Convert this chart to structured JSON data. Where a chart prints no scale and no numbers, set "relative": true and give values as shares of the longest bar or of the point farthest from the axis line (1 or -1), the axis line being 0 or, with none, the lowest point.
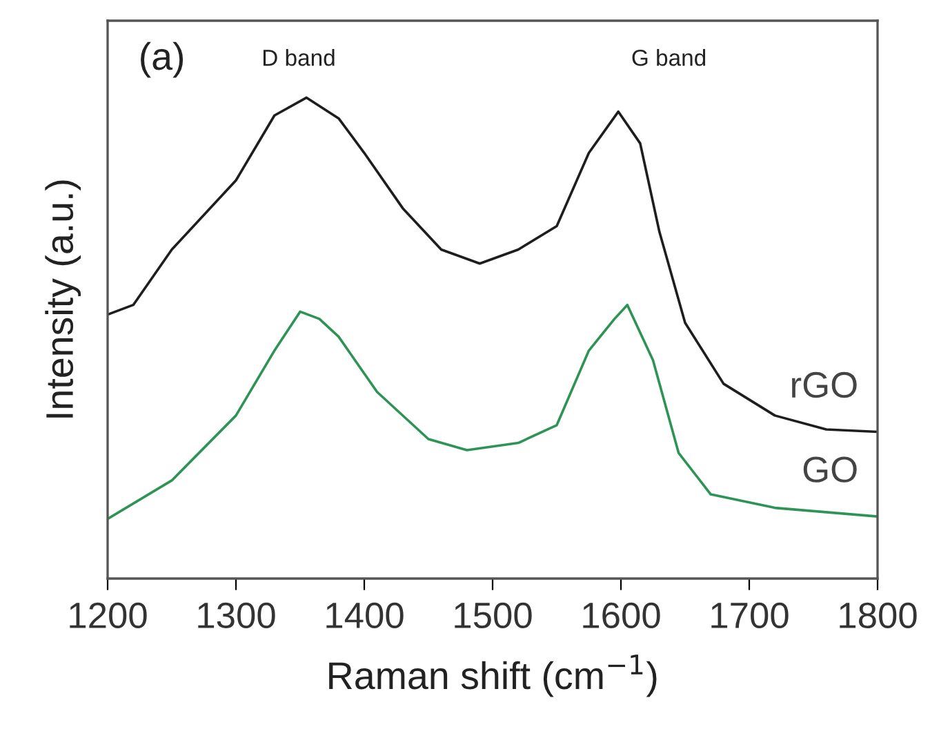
{
  "chart_data": {
    "type": "line",
    "relative": true,
    "xlabel": "Raman shift (cm$^{−1}$)",
    "ylabel": "Intensity (a.u.)",
    "annotations": [
      "(a)",
      "D band",
      "G band"
    ],
    "xlim": [
      1200,
      1800
    ],
    "xticks": [
      1200,
      1300,
      1400,
      1500,
      1600,
      1700,
      1800
    ],
    "grid": false,
    "legend": false,
    "series": [
      {
        "name": "rGO",
        "color": "#1e1e1e",
        "x": [
          1200,
          1220,
          1250,
          1300,
          1330,
          1355,
          1380,
          1400,
          1430,
          1460,
          1490,
          1520,
          1550,
          1575,
          1598,
          1615,
          1630,
          1650,
          1680,
          1720,
          1760,
          1800
        ],
        "values": [
          0.549,
          0.569,
          0.684,
          0.828,
          0.963,
          1.0,
          0.957,
          0.885,
          0.77,
          0.684,
          0.655,
          0.684,
          0.733,
          0.885,
          0.971,
          0.905,
          0.721,
          0.532,
          0.405,
          0.339,
          0.31,
          0.305
        ]
      },
      {
        "name": "GO",
        "color": "#2e9455",
        "x": [
          1200,
          1250,
          1300,
          1330,
          1350,
          1365,
          1380,
          1410,
          1450,
          1480,
          1520,
          1550,
          1575,
          1595,
          1605,
          1625,
          1645,
          1670,
          1720,
          1800
        ],
        "values": [
          0.124,
          0.204,
          0.339,
          0.474,
          0.555,
          0.54,
          0.503,
          0.388,
          0.29,
          0.267,
          0.282,
          0.319,
          0.474,
          0.54,
          0.569,
          0.454,
          0.261,
          0.175,
          0.147,
          0.129
        ]
      }
    ]
  }
}
